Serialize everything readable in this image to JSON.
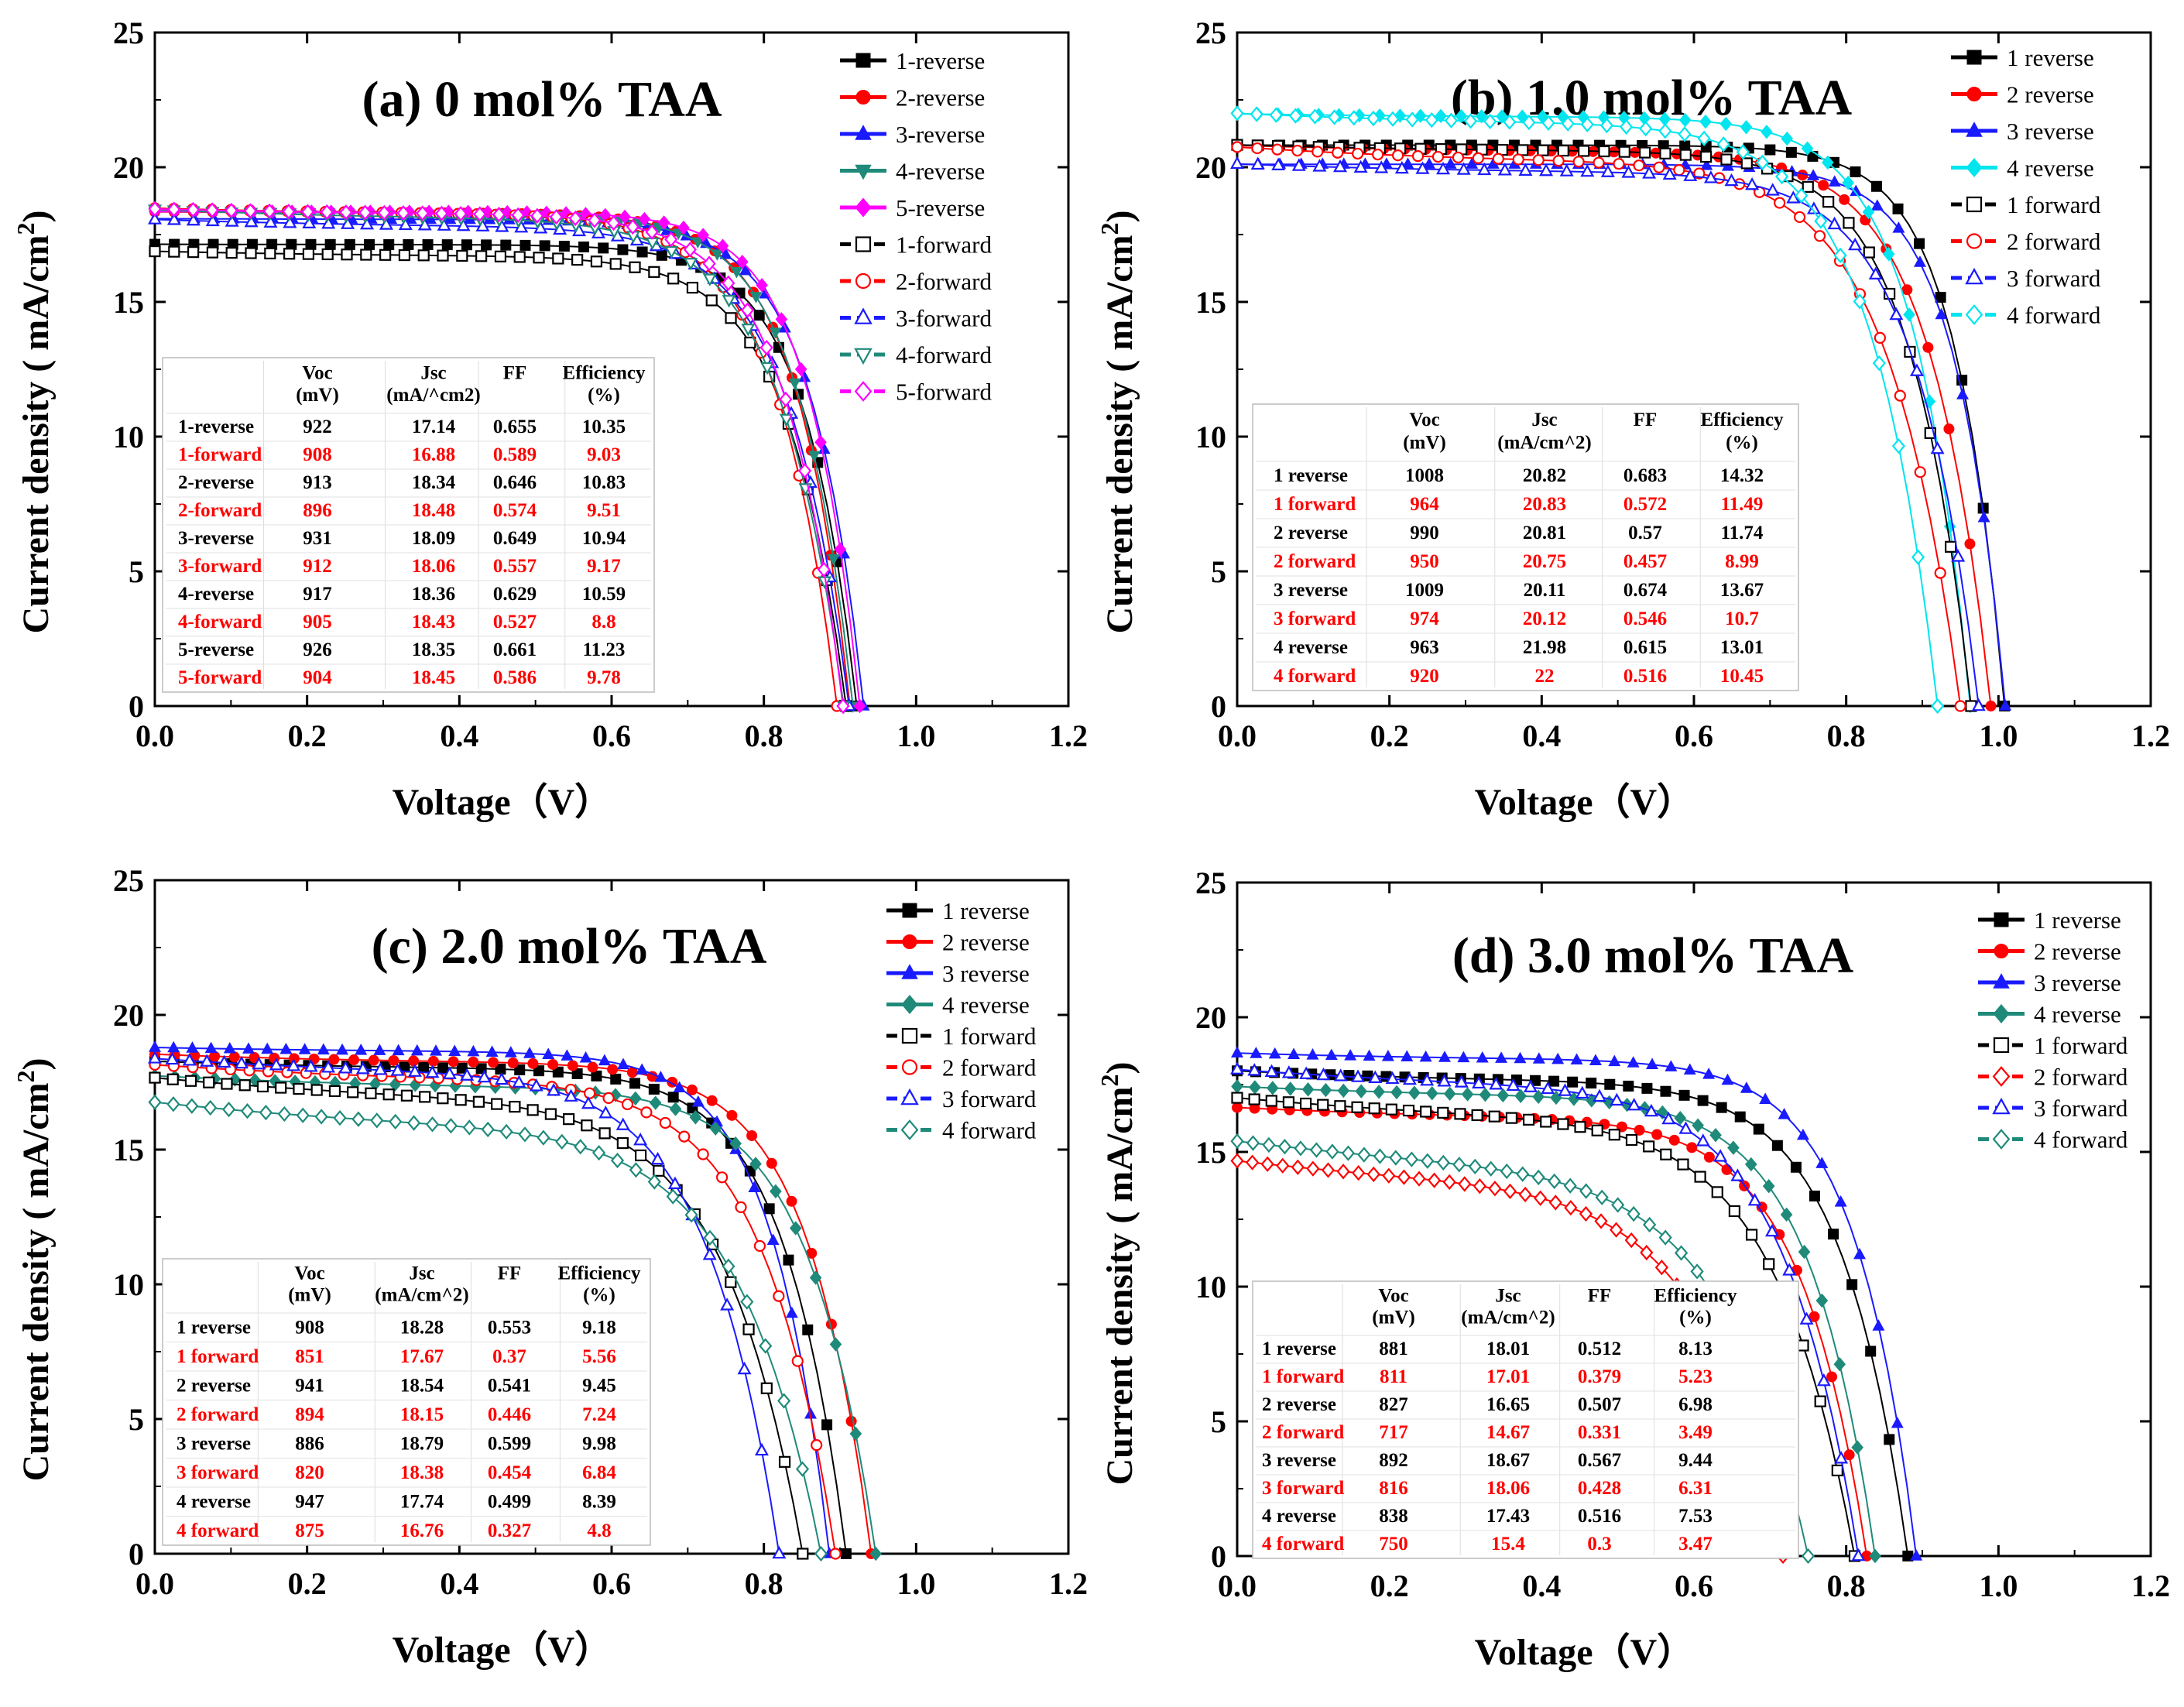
{
  "chart_data": [
    {
      "type": "line",
      "title": "(a) 0 mol% TAA",
      "xlabel": "Voltage（V）",
      "ylabel": "Current density ( mA/cm",
      "ylabel_sup": "2",
      "ylabel_end": ")",
      "xlim": [
        0,
        1.2
      ],
      "ylim": [
        0,
        25
      ],
      "xticks": [
        "0.0",
        "0.2",
        "0.4",
        "0.6",
        "0.8",
        "1.0",
        "1.2"
      ],
      "yticks": [
        "0",
        "5",
        "10",
        "15",
        "20",
        "25"
      ],
      "series": [
        {
          "name": "1-reverse",
          "color": "#000000",
          "marker": "square",
          "filled": true,
          "jsc": 17.14,
          "voc": 0.922,
          "ff": 0.655
        },
        {
          "name": "2-reverse",
          "color": "#ff0000",
          "marker": "circle",
          "filled": true,
          "jsc": 18.34,
          "voc": 0.913,
          "ff": 0.646
        },
        {
          "name": "3-reverse",
          "color": "#1a1aff",
          "marker": "triangle",
          "filled": true,
          "jsc": 18.09,
          "voc": 0.931,
          "ff": 0.649
        },
        {
          "name": "4-reverse",
          "color": "#1f8a7a",
          "marker": "triangle-down",
          "filled": true,
          "jsc": 18.36,
          "voc": 0.917,
          "ff": 0.629
        },
        {
          "name": "5-reverse",
          "color": "#ff00ff",
          "marker": "diamond",
          "filled": true,
          "jsc": 18.35,
          "voc": 0.926,
          "ff": 0.661
        },
        {
          "name": "1-forward",
          "color": "#000000",
          "marker": "square",
          "filled": false,
          "jsc": 16.88,
          "voc": 0.908,
          "ff": 0.589
        },
        {
          "name": "2-forward",
          "color": "#ff0000",
          "marker": "circle",
          "filled": false,
          "jsc": 18.48,
          "voc": 0.896,
          "ff": 0.574
        },
        {
          "name": "3-forward",
          "color": "#1a1aff",
          "marker": "triangle",
          "filled": false,
          "jsc": 18.06,
          "voc": 0.912,
          "ff": 0.557
        },
        {
          "name": "4-forward",
          "color": "#1f8a7a",
          "marker": "triangle-down",
          "filled": false,
          "jsc": 18.43,
          "voc": 0.905,
          "ff": 0.527
        },
        {
          "name": "5-forward",
          "color": "#ff00ff",
          "marker": "diamond",
          "filled": false,
          "jsc": 18.45,
          "voc": 0.904,
          "ff": 0.586
        }
      ],
      "table": {
        "headers": [
          [
            "",
            ""
          ],
          [
            "Voc",
            "(mV)"
          ],
          [
            "Jsc",
            "(mA/^cm2)"
          ],
          [
            "FF",
            ""
          ],
          [
            "Efficiency",
            "(%)"
          ]
        ],
        "rows": [
          {
            "cells": [
              "1-reverse",
              "922",
              "17.14",
              "0.655",
              "10.35"
            ],
            "red": false
          },
          {
            "cells": [
              "1-forward",
              "908",
              "16.88",
              "0.589",
              "9.03"
            ],
            "red": true
          },
          {
            "cells": [
              "2-reverse",
              "913",
              "18.34",
              "0.646",
              "10.83"
            ],
            "red": false
          },
          {
            "cells": [
              "2-forward",
              "896",
              "18.48",
              "0.574",
              "9.51"
            ],
            "red": true
          },
          {
            "cells": [
              "3-reverse",
              "931",
              "18.09",
              "0.649",
              "10.94"
            ],
            "red": false
          },
          {
            "cells": [
              "3-forward",
              "912",
              "18.06",
              "0.557",
              "9.17"
            ],
            "red": true
          },
          {
            "cells": [
              "4-reverse",
              "917",
              "18.36",
              "0.629",
              "10.59"
            ],
            "red": false
          },
          {
            "cells": [
              "4-forward",
              "905",
              "18.43",
              "0.527",
              "8.8"
            ],
            "red": true
          },
          {
            "cells": [
              "5-reverse",
              "926",
              "18.35",
              "0.661",
              "11.23"
            ],
            "red": false
          },
          {
            "cells": [
              "5-forward",
              "904",
              "18.45",
              "0.586",
              "9.78"
            ],
            "red": true
          }
        ]
      }
    },
    {
      "type": "line",
      "title": "(b) 1.0 mol% TAA",
      "xlabel": "Voltage（V）",
      "ylabel": "Current density ( mA/cm",
      "ylabel_sup": "2",
      "ylabel_end": ")",
      "xlim": [
        0,
        1.2
      ],
      "ylim": [
        0,
        25
      ],
      "xticks": [
        "0.0",
        "0.2",
        "0.4",
        "0.6",
        "0.8",
        "1.0",
        "1.2"
      ],
      "yticks": [
        "0",
        "5",
        "10",
        "15",
        "20",
        "25"
      ],
      "series": [
        {
          "name": "1 reverse",
          "color": "#000000",
          "marker": "square",
          "filled": true,
          "jsc": 20.82,
          "voc": 1.008,
          "ff": 0.683
        },
        {
          "name": "2 reverse",
          "color": "#ff0000",
          "marker": "circle",
          "filled": true,
          "jsc": 20.81,
          "voc": 0.99,
          "ff": 0.57
        },
        {
          "name": "3 reverse",
          "color": "#1a1aff",
          "marker": "triangle",
          "filled": true,
          "jsc": 20.11,
          "voc": 1.009,
          "ff": 0.674
        },
        {
          "name": "4 reverse",
          "color": "#00e5ee",
          "marker": "diamond",
          "filled": true,
          "jsc": 21.98,
          "voc": 0.963,
          "ff": 0.615
        },
        {
          "name": "1 forward",
          "color": "#000000",
          "marker": "square",
          "filled": false,
          "jsc": 20.83,
          "voc": 0.964,
          "ff": 0.572
        },
        {
          "name": "2 forward",
          "color": "#ff0000",
          "marker": "circle",
          "filled": false,
          "jsc": 20.75,
          "voc": 0.95,
          "ff": 0.457
        },
        {
          "name": "3 forward",
          "color": "#1a1aff",
          "marker": "triangle",
          "filled": false,
          "jsc": 20.12,
          "voc": 0.974,
          "ff": 0.546
        },
        {
          "name": "4 forward",
          "color": "#00e5ee",
          "marker": "diamond",
          "filled": false,
          "jsc": 22.0,
          "voc": 0.92,
          "ff": 0.516
        }
      ],
      "table": {
        "headers": [
          [
            "",
            ""
          ],
          [
            "Voc",
            "(mV)"
          ],
          [
            "Jsc",
            "(mA/cm^2)"
          ],
          [
            "FF",
            ""
          ],
          [
            "Efficiency",
            "(%)"
          ]
        ],
        "rows": [
          {
            "cells": [
              "1 reverse",
              "1008",
              "20.82",
              "0.683",
              "14.32"
            ],
            "red": false
          },
          {
            "cells": [
              "1 forward",
              "964",
              "20.83",
              "0.572",
              "11.49"
            ],
            "red": true
          },
          {
            "cells": [
              "2 reverse",
              "990",
              "20.81",
              "0.57",
              "11.74"
            ],
            "red": false
          },
          {
            "cells": [
              "2 forward",
              "950",
              "20.75",
              "0.457",
              "8.99"
            ],
            "red": true
          },
          {
            "cells": [
              "3 reverse",
              "1009",
              "20.11",
              "0.674",
              "13.67"
            ],
            "red": false
          },
          {
            "cells": [
              "3 forward",
              "974",
              "20.12",
              "0.546",
              "10.7"
            ],
            "red": true
          },
          {
            "cells": [
              "4 reverse",
              "963",
              "21.98",
              "0.615",
              "13.01"
            ],
            "red": false
          },
          {
            "cells": [
              "4 forward",
              "920",
              "22",
              "0.516",
              "10.45"
            ],
            "red": true
          }
        ]
      }
    },
    {
      "type": "line",
      "title": "(c) 2.0 mol% TAA",
      "xlabel": "Voltage（V）",
      "ylabel": "Current density ( mA/cm",
      "ylabel_sup": "2",
      "ylabel_end": ")",
      "xlim": [
        0,
        1.2
      ],
      "ylim": [
        0,
        25
      ],
      "xticks": [
        "0.0",
        "0.2",
        "0.4",
        "0.6",
        "0.8",
        "1.0",
        "1.2"
      ],
      "yticks": [
        "0",
        "5",
        "10",
        "15",
        "20",
        "25"
      ],
      "series": [
        {
          "name": "1 reverse",
          "color": "#000000",
          "marker": "square",
          "filled": true,
          "jsc": 18.28,
          "voc": 0.908,
          "ff": 0.553
        },
        {
          "name": "2 reverse",
          "color": "#ff0000",
          "marker": "circle",
          "filled": true,
          "jsc": 18.54,
          "voc": 0.941,
          "ff": 0.541
        },
        {
          "name": "3 reverse",
          "color": "#1a1aff",
          "marker": "triangle",
          "filled": true,
          "jsc": 18.79,
          "voc": 0.886,
          "ff": 0.599
        },
        {
          "name": "4 reverse",
          "color": "#1f8a7a",
          "marker": "diamond",
          "filled": true,
          "jsc": 17.74,
          "voc": 0.947,
          "ff": 0.499
        },
        {
          "name": "1 forward",
          "color": "#000000",
          "marker": "square",
          "filled": false,
          "jsc": 17.67,
          "voc": 0.851,
          "ff": 0.37
        },
        {
          "name": "2 forward",
          "color": "#ff0000",
          "marker": "circle",
          "filled": false,
          "jsc": 18.15,
          "voc": 0.894,
          "ff": 0.446
        },
        {
          "name": "3 forward",
          "color": "#1a1aff",
          "marker": "triangle",
          "filled": false,
          "jsc": 18.38,
          "voc": 0.82,
          "ff": 0.454
        },
        {
          "name": "4 forward",
          "color": "#1f8a7a",
          "marker": "diamond",
          "filled": false,
          "jsc": 16.76,
          "voc": 0.875,
          "ff": 0.327
        }
      ],
      "table": {
        "headers": [
          [
            "",
            ""
          ],
          [
            "Voc",
            "(mV)"
          ],
          [
            "Jsc",
            "(mA/cm^2)"
          ],
          [
            "FF",
            ""
          ],
          [
            "Efficiency",
            "(%)"
          ]
        ],
        "rows": [
          {
            "cells": [
              "1 reverse",
              "908",
              "18.28",
              "0.553",
              "9.18"
            ],
            "red": false
          },
          {
            "cells": [
              "1 forward",
              "851",
              "17.67",
              "0.37",
              "5.56"
            ],
            "red": true
          },
          {
            "cells": [
              "2 reverse",
              "941",
              "18.54",
              "0.541",
              "9.45"
            ],
            "red": false
          },
          {
            "cells": [
              "2 forward",
              "894",
              "18.15",
              "0.446",
              "7.24"
            ],
            "red": true
          },
          {
            "cells": [
              "3 reverse",
              "886",
              "18.79",
              "0.599",
              "9.98"
            ],
            "red": false
          },
          {
            "cells": [
              "3 forward",
              "820",
              "18.38",
              "0.454",
              "6.84"
            ],
            "red": true
          },
          {
            "cells": [
              "4 reverse",
              "947",
              "17.74",
              "0.499",
              "8.39"
            ],
            "red": false
          },
          {
            "cells": [
              "4 forward",
              "875",
              "16.76",
              "0.327",
              "4.8"
            ],
            "red": true
          }
        ]
      }
    },
    {
      "type": "line",
      "title": "(d) 3.0 mol% TAA",
      "xlabel": "Voltage（V）",
      "ylabel": "Current density ( mA/cm",
      "ylabel_sup": "2",
      "ylabel_end": ")",
      "xlim": [
        0,
        1.2
      ],
      "ylim": [
        0,
        25
      ],
      "xticks": [
        "0.0",
        "0.2",
        "0.4",
        "0.6",
        "0.8",
        "1.0",
        "1.2"
      ],
      "yticks": [
        "0",
        "5",
        "10",
        "15",
        "20",
        "25"
      ],
      "series": [
        {
          "name": "1 reverse",
          "color": "#000000",
          "marker": "square",
          "filled": true,
          "jsc": 18.01,
          "voc": 0.881,
          "ff": 0.512
        },
        {
          "name": "2 reverse",
          "color": "#ff0000",
          "marker": "circle",
          "filled": true,
          "jsc": 16.65,
          "voc": 0.827,
          "ff": 0.507
        },
        {
          "name": "3 reverse",
          "color": "#1a1aff",
          "marker": "triangle",
          "filled": true,
          "jsc": 18.67,
          "voc": 0.892,
          "ff": 0.567
        },
        {
          "name": "4 reverse",
          "color": "#1f8a7a",
          "marker": "diamond",
          "filled": true,
          "jsc": 17.43,
          "voc": 0.838,
          "ff": 0.516
        },
        {
          "name": "1 forward",
          "color": "#000000",
          "marker": "square",
          "filled": false,
          "jsc": 17.01,
          "voc": 0.811,
          "ff": 0.379
        },
        {
          "name": "2 forward",
          "color": "#ff0000",
          "marker": "diamond",
          "filled": false,
          "jsc": 14.67,
          "voc": 0.717,
          "ff": 0.331
        },
        {
          "name": "3 forward",
          "color": "#1a1aff",
          "marker": "triangle",
          "filled": false,
          "jsc": 18.06,
          "voc": 0.816,
          "ff": 0.428
        },
        {
          "name": "4 forward",
          "color": "#1f8a7a",
          "marker": "diamond",
          "filled": false,
          "jsc": 15.4,
          "voc": 0.75,
          "ff": 0.3
        }
      ],
      "table": {
        "headers": [
          [
            "",
            ""
          ],
          [
            "Voc",
            "(mV)"
          ],
          [
            "Jsc",
            "(mA/cm^2)"
          ],
          [
            "FF",
            ""
          ],
          [
            "Efficiency",
            "(%)"
          ]
        ],
        "rows": [
          {
            "cells": [
              "1 reverse",
              "881",
              "18.01",
              "0.512",
              "8.13"
            ],
            "red": false
          },
          {
            "cells": [
              "1 forward",
              "811",
              "17.01",
              "0.379",
              "5.23"
            ],
            "red": true
          },
          {
            "cells": [
              "2 reverse",
              "827",
              "16.65",
              "0.507",
              "6.98"
            ],
            "red": false
          },
          {
            "cells": [
              "2 forward",
              "717",
              "14.67",
              "0.331",
              "3.49"
            ],
            "red": true
          },
          {
            "cells": [
              "3 reverse",
              "892",
              "18.67",
              "0.567",
              "9.44"
            ],
            "red": false
          },
          {
            "cells": [
              "3 forward",
              "816",
              "18.06",
              "0.428",
              "6.31"
            ],
            "red": true
          },
          {
            "cells": [
              "4 reverse",
              "838",
              "17.43",
              "0.516",
              "7.53"
            ],
            "red": false
          },
          {
            "cells": [
              "4 forward",
              "750",
              "15.4",
              "0.3",
              "3.47"
            ],
            "red": true
          }
        ]
      }
    }
  ]
}
